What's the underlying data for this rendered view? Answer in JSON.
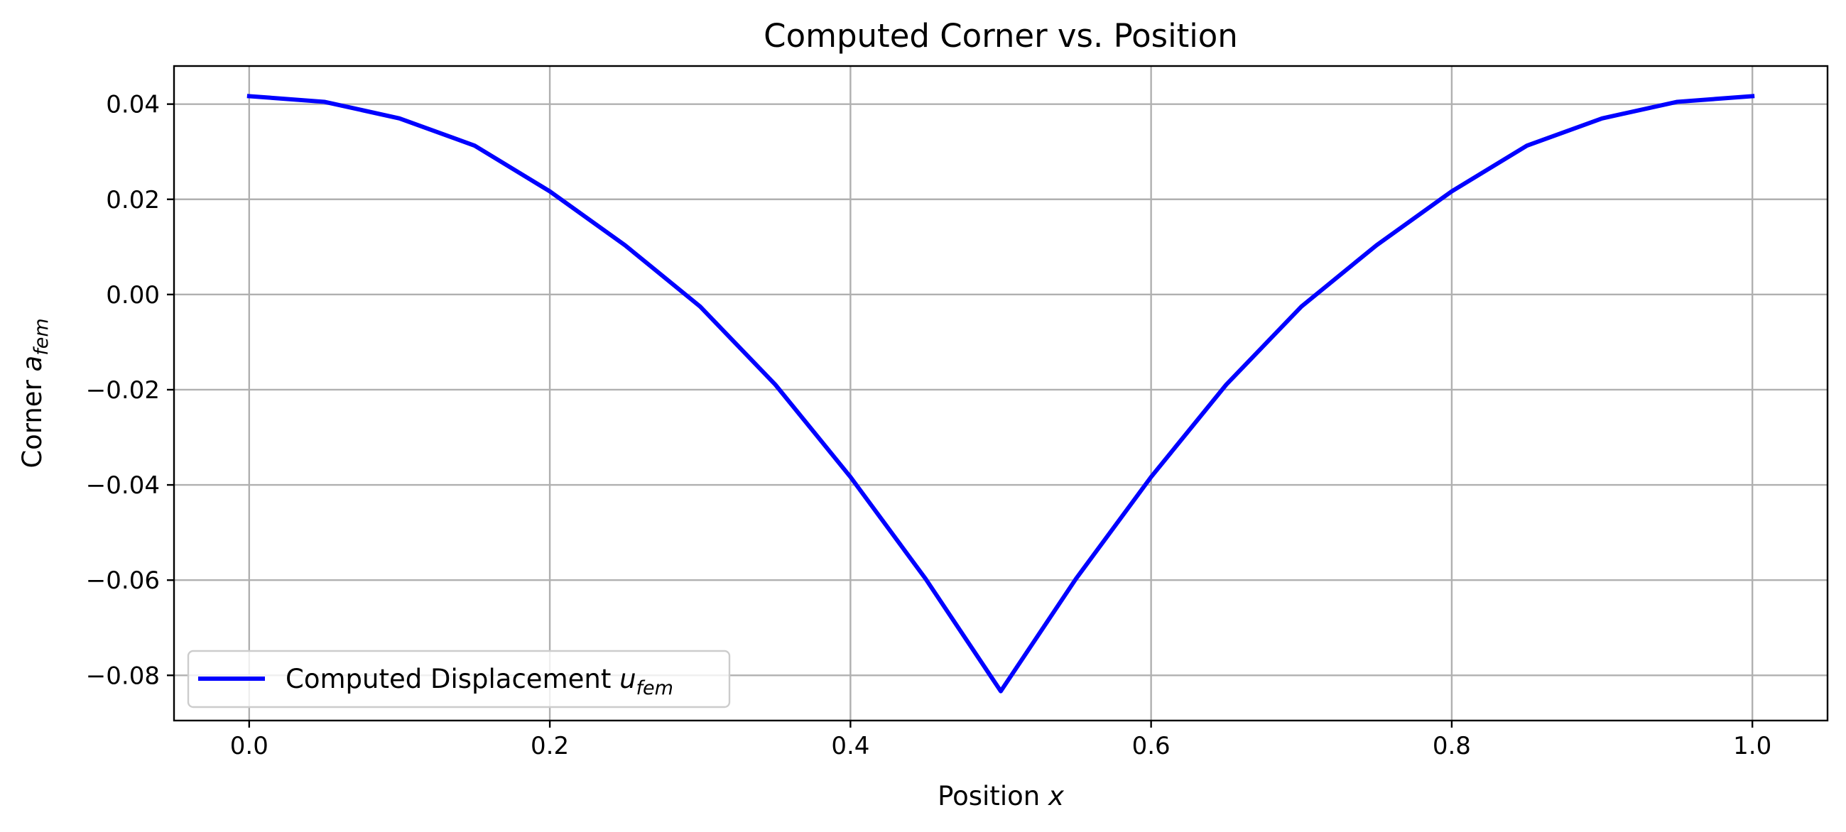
{
  "chart_data": {
    "type": "line",
    "title": "Computed Corner vs. Position",
    "xlabel": {
      "text": "Position ",
      "symbol": "x"
    },
    "ylabel": {
      "text": "Corner ",
      "symbol": "a",
      "subscript": "fem"
    },
    "xlim": [
      -0.05,
      1.05
    ],
    "ylim": [
      -0.0895,
      0.048
    ],
    "xticks": [
      0.0,
      0.2,
      0.4,
      0.6,
      0.8,
      1.0
    ],
    "xtick_labels": [
      "0.0",
      "0.2",
      "0.4",
      "0.6",
      "0.8",
      "1.0"
    ],
    "yticks": [
      0.04,
      0.02,
      0.0,
      -0.02,
      -0.04,
      -0.06,
      -0.08
    ],
    "ytick_labels": [
      "0.04",
      "0.02",
      "0.00",
      "−0.02",
      "−0.04",
      "−0.06",
      "−0.08"
    ],
    "grid": true,
    "legend": {
      "placement": "lower-left"
    },
    "series": [
      {
        "name": "Computed Displacement ",
        "name_symbol": "u",
        "name_subscript": "fem",
        "color": "#0000ff",
        "x": [
          0.0,
          0.05,
          0.1,
          0.15,
          0.2,
          0.25,
          0.3,
          0.35,
          0.4,
          0.45,
          0.5,
          0.55,
          0.6,
          0.65,
          0.7,
          0.75,
          0.8,
          0.85,
          0.9,
          0.95,
          1.0
        ],
        "y": [
          0.04167,
          0.04048,
          0.037,
          0.03127,
          0.02167,
          0.01036,
          -0.00253,
          -0.01893,
          -0.03833,
          -0.05973,
          -0.08333,
          -0.05973,
          -0.03833,
          -0.01893,
          -0.00253,
          0.01036,
          0.02167,
          0.03127,
          0.037,
          0.04048,
          0.04167
        ]
      }
    ]
  }
}
